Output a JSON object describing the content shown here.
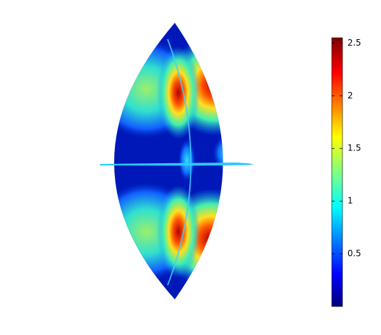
{
  "chart_data": {
    "type": "surface",
    "colorbar": {
      "clim": [
        0,
        2.55
      ],
      "ticks": [
        0.5,
        1,
        1.5,
        2,
        2.5
      ]
    }
  }
}
